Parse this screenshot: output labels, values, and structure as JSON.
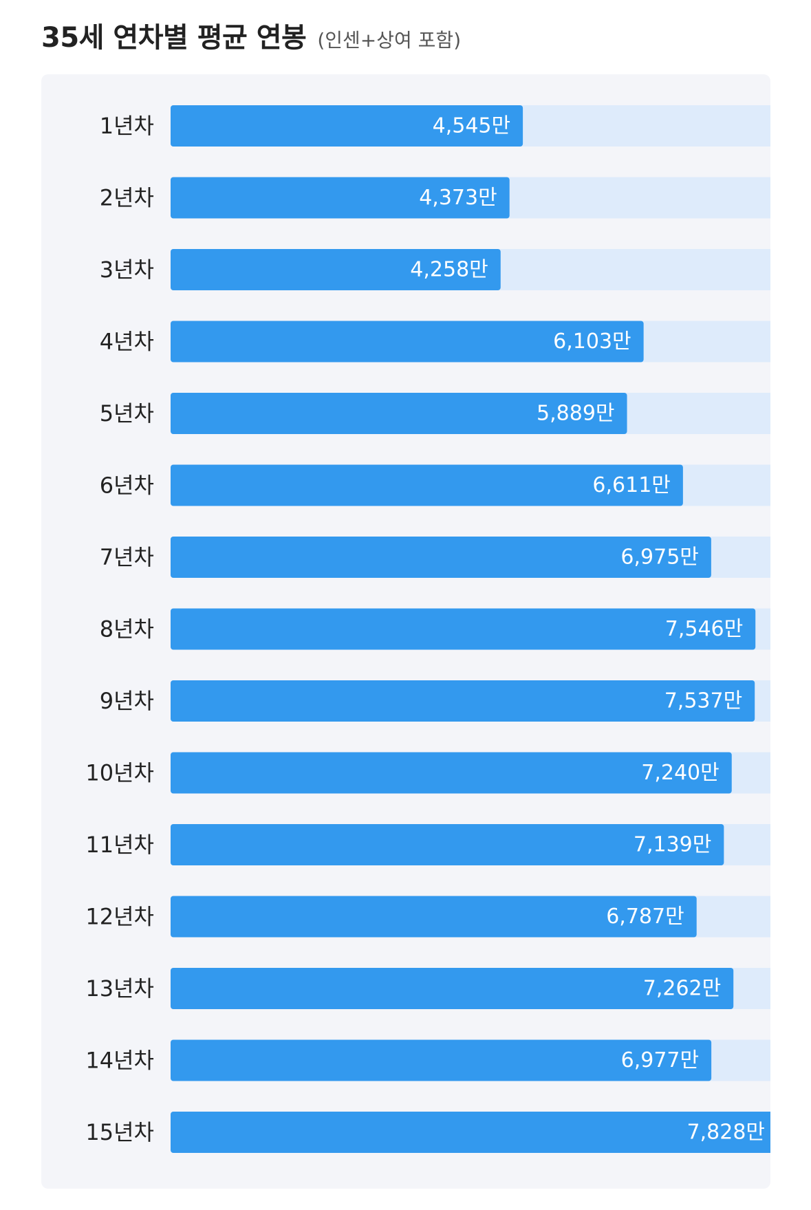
{
  "header": {
    "title": "35세 연차별 평균 연봉",
    "subtitle": "(인센+상여 포함)"
  },
  "colors": {
    "bar": "#3399ee",
    "track": "#deebfb",
    "panel": "#f4f5f9"
  },
  "chart_data": {
    "type": "bar",
    "orientation": "horizontal",
    "title": "35세 연차별 평균 연봉",
    "subtitle": "(인센+상여 포함)",
    "unit": "만",
    "categories": [
      "1년차",
      "2년차",
      "3년차",
      "4년차",
      "5년차",
      "6년차",
      "7년차",
      "8년차",
      "9년차",
      "10년차",
      "11년차",
      "12년차",
      "13년차",
      "14년차",
      "15년차"
    ],
    "values": [
      4545,
      4373,
      4258,
      6103,
      5889,
      6611,
      6975,
      7546,
      7537,
      7240,
      7139,
      6787,
      7262,
      6977,
      7828
    ],
    "value_labels": [
      "4,545만",
      "4,373만",
      "4,258만",
      "6,103만",
      "5,889만",
      "6,611만",
      "6,975만",
      "7,546만",
      "7,537만",
      "7,240만",
      "7,139만",
      "6,787만",
      "7,262만",
      "6,977만",
      "7,828만"
    ],
    "xlim": [
      0,
      7828
    ],
    "grid": false,
    "legend": "none"
  }
}
